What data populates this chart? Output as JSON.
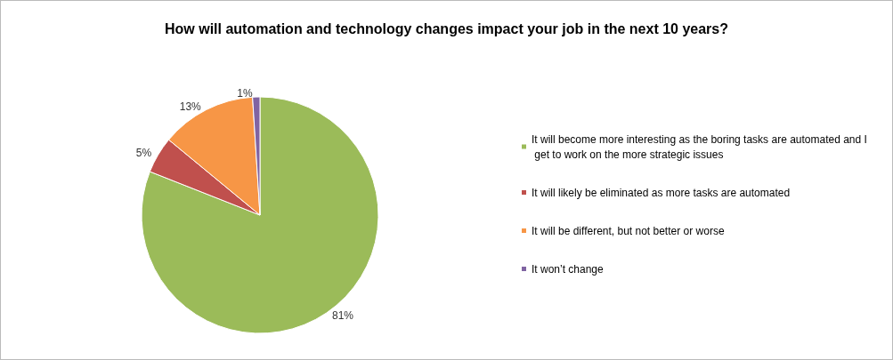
{
  "chart_data": {
    "type": "pie",
    "title": "How will automation and technology changes impact your job in the next 10 years?",
    "categories": [
      "It will become more interesting as the boring tasks are automated and I get to work on the more strategic issues",
      "It will likely be eliminated as more tasks are automated",
      "It will be different, but not better or worse",
      "It won’t change"
    ],
    "values": [
      81,
      5,
      13,
      1
    ],
    "colors": [
      "#9bbb59",
      "#c0504d",
      "#f79646",
      "#8064a2"
    ],
    "value_labels": [
      "81%",
      "5%",
      "13%",
      "1%"
    ],
    "legend": "right"
  }
}
